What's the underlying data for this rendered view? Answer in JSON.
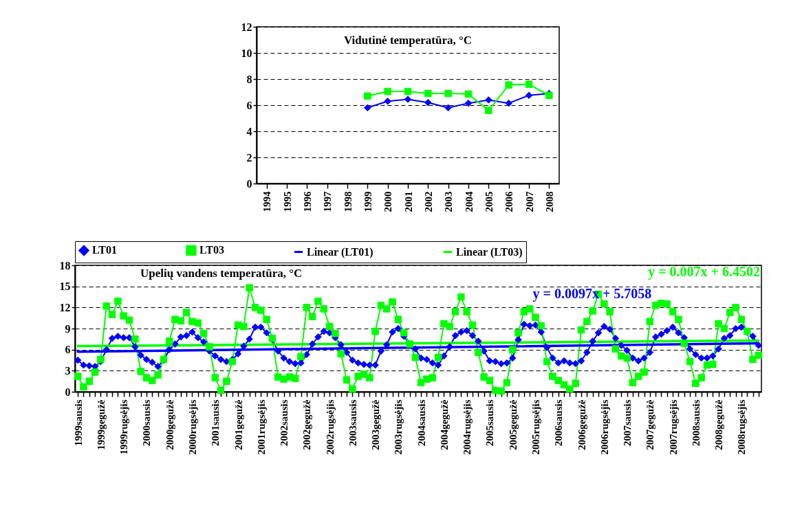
{
  "chart_data": [
    {
      "type": "line",
      "title": "Vidutinė temperatūra, °C",
      "categories": [
        "1994",
        "1995",
        "1996",
        "1997",
        "1998",
        "1999",
        "2000",
        "2001",
        "2002",
        "2003",
        "2004",
        "2005",
        "2006",
        "2007",
        "2008"
      ],
      "series": [
        {
          "color": "#0000ff",
          "marker": "diamond",
          "values": [
            null,
            null,
            null,
            null,
            null,
            5.8,
            6.3,
            6.45,
            6.2,
            5.8,
            6.15,
            6.4,
            6.15,
            6.75,
            6.9
          ]
        },
        {
          "color": "#00ff00",
          "marker": "square",
          "values": [
            null,
            null,
            null,
            null,
            null,
            6.7,
            7.05,
            7.05,
            6.9,
            6.9,
            6.85,
            5.6,
            7.55,
            7.6,
            6.75
          ]
        }
      ],
      "ylim": [
        0,
        12
      ],
      "yticks": [
        0,
        2,
        4,
        6,
        8,
        10,
        12
      ],
      "grid": "y",
      "legend": false
    },
    {
      "type": "line",
      "title": "Upelių vandens temperatūra, °C",
      "categories": [
        "1999sausis",
        null,
        null,
        null,
        "1999gegužė",
        null,
        null,
        null,
        "1999rugsėjis",
        null,
        null,
        null,
        "2000sausis",
        null,
        null,
        null,
        "2000gegužė",
        null,
        null,
        null,
        "2000rugsėjis",
        null,
        null,
        null,
        "2001sausis",
        null,
        null,
        null,
        "2001gegužė",
        null,
        null,
        null,
        "2001rugsėjis",
        null,
        null,
        null,
        "2002sausis",
        null,
        null,
        null,
        "2002gegužė",
        null,
        null,
        null,
        "2002rugsėjis",
        null,
        null,
        null,
        "2003sausis",
        null,
        null,
        null,
        "2003gegužė",
        null,
        null,
        null,
        "2003rugsėjis",
        null,
        null,
        null,
        "2004sausis",
        null,
        null,
        null,
        "2004gegužė",
        null,
        null,
        null,
        "2004rugsėjis",
        null,
        null,
        null,
        "2005sausis",
        null,
        null,
        null,
        "2005gegužė",
        null,
        null,
        null,
        "2005rugsėjis",
        null,
        null,
        null,
        "2006sausis",
        null,
        null,
        null,
        "2006gegužė",
        null,
        null,
        null,
        "2006rugsėjis",
        null,
        null,
        null,
        "2007sausis",
        null,
        null,
        null,
        "2007gegužė",
        null,
        null,
        null,
        "2007rugsėjis",
        null,
        null,
        null,
        "2008sausis",
        null,
        null,
        null,
        "2008gegužė",
        null,
        null,
        null,
        "2008rugsėjis",
        null,
        null,
        null
      ],
      "series": [
        {
          "name": "LT01",
          "color": "#0000ff",
          "marker": "diamond",
          "values": [
            4.5,
            3.8,
            3.7,
            3.6,
            4.3,
            6.0,
            7.6,
            7.9,
            7.7,
            7.7,
            6.4,
            5.2,
            4.6,
            4.2,
            3.6,
            4.5,
            6.0,
            6.8,
            7.8,
            8.0,
            8.5,
            7.7,
            7.1,
            5.8,
            5.1,
            4.6,
            4.3,
            4.6,
            5.4,
            6.5,
            7.5,
            9.2,
            9.2,
            8.4,
            7.4,
            5.8,
            4.8,
            4.3,
            4.0,
            4.1,
            5.3,
            6.8,
            7.8,
            8.6,
            8.4,
            7.7,
            6.7,
            5.6,
            4.5,
            4.1,
            3.9,
            3.8,
            3.8,
            5.8,
            6.7,
            8.5,
            9.0,
            7.9,
            6.8,
            6.1,
            4.8,
            4.6,
            4.1,
            3.8,
            5.1,
            6.4,
            8.0,
            8.5,
            8.7,
            8.0,
            7.2,
            5.8,
            4.4,
            4.3,
            4.0,
            4.1,
            4.8,
            7.4,
            9.6,
            9.4,
            9.5,
            8.5,
            6.3,
            4.8,
            4.1,
            4.4,
            4.1,
            4.0,
            4.4,
            5.6,
            7.2,
            8.4,
            9.3,
            8.9,
            7.6,
            6.6,
            5.9,
            4.8,
            4.4,
            4.8,
            5.6,
            7.8,
            8.2,
            8.7,
            9.2,
            8.4,
            7.7,
            6.1,
            5.3,
            4.8,
            4.8,
            5.1,
            6.1,
            7.6,
            8.0,
            9.0,
            9.2,
            8.5,
            7.9,
            6.6
          ]
        },
        {
          "name": "LT03",
          "color": "#00ff00",
          "marker": "square",
          "values": [
            2.2,
            0.7,
            1.5,
            2.8,
            4.6,
            12.2,
            11.0,
            12.9,
            10.8,
            10.2,
            7.5,
            2.9,
            2.0,
            1.6,
            2.4,
            4.6,
            7.2,
            10.3,
            10.1,
            11.3,
            10.0,
            9.8,
            8.3,
            6.4,
            2.0,
            0.2,
            1.5,
            4.3,
            9.5,
            9.3,
            14.8,
            12.0,
            11.6,
            10.3,
            7.6,
            2.1,
            1.8,
            2.1,
            1.9,
            5.0,
            12.0,
            10.7,
            12.9,
            11.8,
            9.3,
            8.3,
            5.4,
            1.7,
            0.4,
            2.2,
            2.5,
            2.0,
            8.6,
            12.3,
            11.8,
            12.8,
            10.3,
            8.4,
            6.8,
            4.9,
            1.3,
            1.8,
            2.0,
            4.9,
            9.7,
            9.3,
            11.4,
            13.5,
            11.4,
            9.5,
            5.6,
            2.1,
            1.6,
            0.2,
            0.1,
            1.3,
            6.0,
            8.4,
            11.4,
            11.8,
            10.6,
            9.4,
            4.3,
            2.2,
            1.6,
            1.0,
            0.4,
            1.2,
            8.8,
            10.0,
            11.5,
            13.9,
            12.5,
            11.4,
            6.1,
            5.1,
            4.8,
            1.3,
            2.2,
            2.8,
            10.0,
            12.3,
            12.6,
            12.5,
            11.4,
            10.3,
            6.9,
            4.3,
            1.2,
            2.0,
            3.8,
            3.9,
            9.7,
            9.0,
            11.3,
            12.0,
            10.3,
            8.6,
            4.6,
            5.2
          ]
        },
        {
          "name": "Linear (LT01)",
          "type": "line",
          "color": "#0000ff",
          "marker": "none",
          "values": [
            5.7,
            null,
            null,
            null,
            null,
            null,
            null,
            null,
            null,
            null,
            null,
            null,
            null,
            null,
            null,
            null,
            null,
            null,
            null,
            null,
            null,
            null,
            null,
            null,
            null,
            null,
            null,
            null,
            null,
            null,
            null,
            null,
            null,
            null,
            null,
            null,
            null,
            null,
            null,
            null,
            null,
            null,
            null,
            null,
            null,
            null,
            null,
            null,
            null,
            null,
            null,
            null,
            null,
            null,
            null,
            null,
            null,
            null,
            null,
            null,
            null,
            null,
            null,
            null,
            null,
            null,
            null,
            null,
            null,
            null,
            null,
            null,
            null,
            null,
            null,
            null,
            null,
            null,
            null,
            null,
            null,
            null,
            null,
            null,
            null,
            null,
            null,
            null,
            null,
            null,
            null,
            null,
            null,
            null,
            null,
            null,
            null,
            null,
            null,
            null,
            null,
            null,
            null,
            null,
            null,
            null,
            null,
            null,
            null,
            null,
            null,
            null,
            null,
            null,
            null,
            null,
            null,
            null,
            null,
            6.9
          ]
        },
        {
          "name": "Linear (LT03)",
          "type": "line",
          "color": "#00ff00",
          "marker": "none",
          "values": [
            6.5,
            null,
            null,
            null,
            null,
            null,
            null,
            null,
            null,
            null,
            null,
            null,
            null,
            null,
            null,
            null,
            null,
            null,
            null,
            null,
            null,
            null,
            null,
            null,
            null,
            null,
            null,
            null,
            null,
            null,
            null,
            null,
            null,
            null,
            null,
            null,
            null,
            null,
            null,
            null,
            null,
            null,
            null,
            null,
            null,
            null,
            null,
            null,
            null,
            null,
            null,
            null,
            null,
            null,
            null,
            null,
            null,
            null,
            null,
            null,
            null,
            null,
            null,
            null,
            null,
            null,
            null,
            null,
            null,
            null,
            null,
            null,
            null,
            null,
            null,
            null,
            null,
            null,
            null,
            null,
            null,
            null,
            null,
            null,
            null,
            null,
            null,
            null,
            null,
            null,
            null,
            null,
            null,
            null,
            null,
            null,
            null,
            null,
            null,
            null,
            null,
            null,
            null,
            null,
            null,
            null,
            null,
            null,
            null,
            null,
            null,
            null,
            null,
            null,
            null,
            null,
            null,
            null,
            null,
            7.3
          ]
        }
      ],
      "annotations": [
        "y = 0.0097x + 5.7058",
        "y = 0.007x + 6.4502"
      ],
      "ylim": [
        0,
        18
      ],
      "yticks": [
        0,
        3,
        6,
        9,
        12,
        15,
        18
      ],
      "grid": "y",
      "legend": "top"
    }
  ]
}
